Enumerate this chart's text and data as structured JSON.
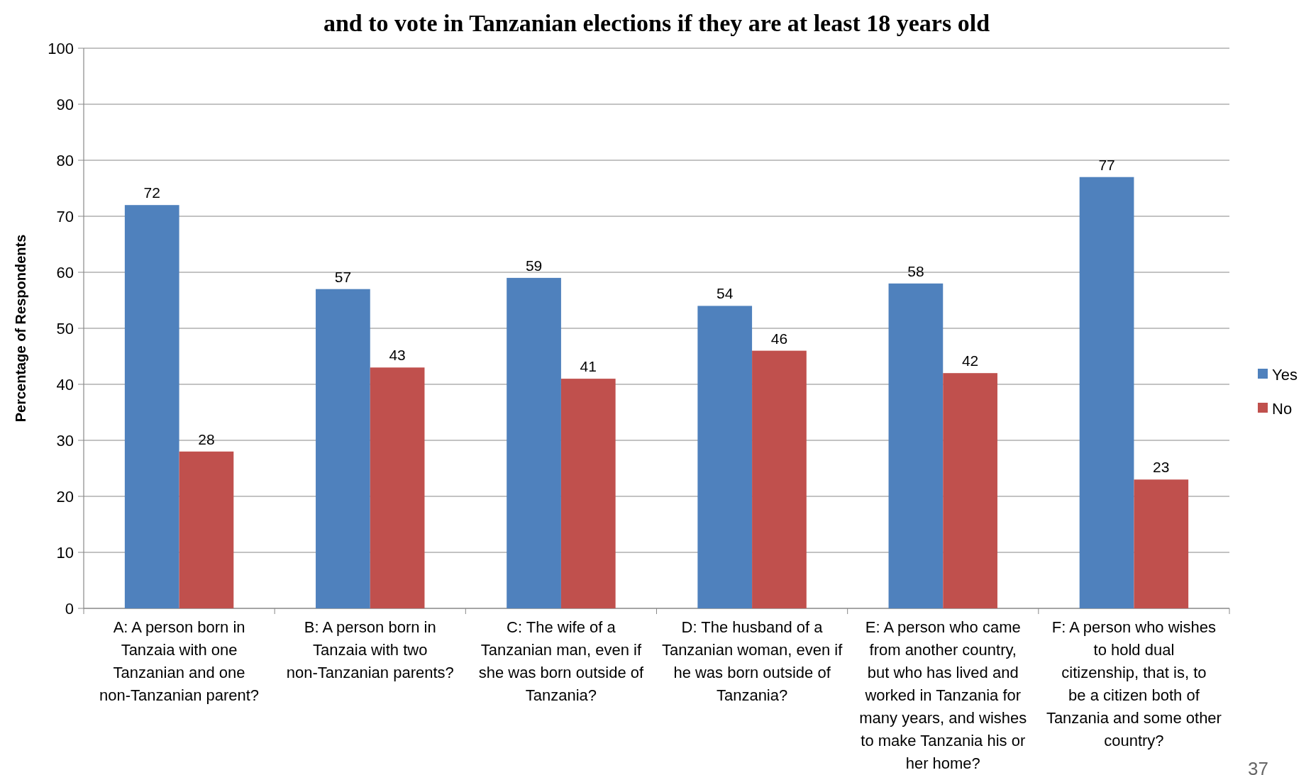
{
  "chart_data": {
    "type": "bar",
    "title": "and to vote in Tanzanian elections if they are at least 18 years old",
    "ylabel": "Percentage of Respondents",
    "categories": [
      "A: A person born in Tanzaia with one Tanzanian and one non-Tanzanian parent?",
      "B: A person born in Tanzaia with two non-Tanzanian parents?",
      "C: The wife of a Tanzanian man, even if she was born outside of Tanzania?",
      "D: The husband of a Tanzanian woman, even if he was born outside of Tanzania?",
      "E: A person who came from another country, but who has lived and worked in Tanzania for many years, and wishes to make Tanzania his or her home?",
      "F: A person who wishes to hold dual citizenship, that is, to be a citizen both of Tanzania and some other country?"
    ],
    "series": [
      {
        "name": "Yes",
        "color": "#4f81bd",
        "values": [
          72,
          57,
          59,
          54,
          58,
          77
        ]
      },
      {
        "name": "No",
        "color": "#c0504d",
        "values": [
          28,
          43,
          41,
          46,
          42,
          23
        ]
      }
    ],
    "ylim": [
      0,
      100
    ],
    "yticks": [
      0,
      10,
      20,
      30,
      40,
      50,
      60,
      70,
      80,
      90,
      100
    ],
    "grid": "y",
    "legend": "right",
    "data_labels": true,
    "annotations": [
      "37"
    ]
  }
}
